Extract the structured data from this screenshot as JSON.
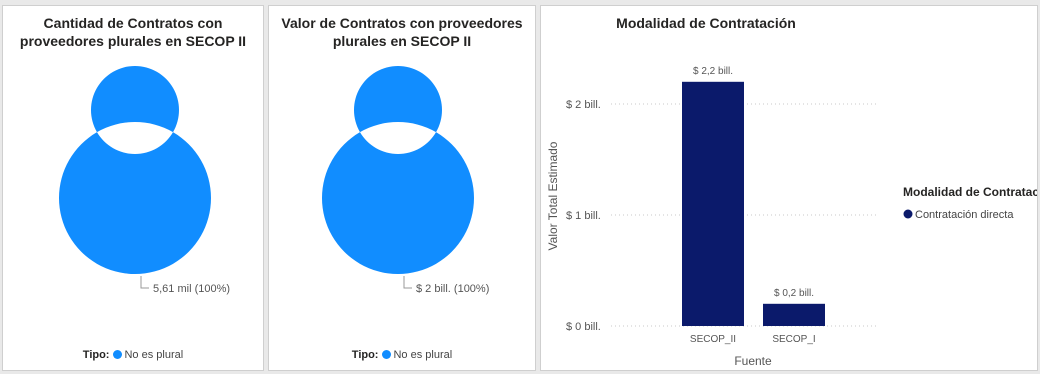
{
  "colors": {
    "donut": "#118dff",
    "bar": "#0b1a6b",
    "grid": "#c8c8c8"
  },
  "chart_data": [
    {
      "type": "pie",
      "title": "Cantidad de Contratos con proveedores plurales en SECOP II",
      "legend_title": "Tipo:",
      "categories": [
        "No es plural"
      ],
      "values": [
        5610
      ],
      "data_labels": [
        "5,61 mil (100%)"
      ],
      "legend_position": "bottom"
    },
    {
      "type": "pie",
      "title": "Valor de Contratos con proveedores plurales en SECOP II",
      "legend_title": "Tipo:",
      "categories": [
        "No es plural"
      ],
      "values": [
        2
      ],
      "data_labels": [
        "$ 2 bill. (100%)"
      ],
      "legend_position": "bottom"
    },
    {
      "type": "bar",
      "title": "Modalidad de Contratación",
      "xlabel": "Fuente",
      "ylabel": "Valor Total Estimado",
      "categories": [
        "SECOP_II",
        "SECOP_I"
      ],
      "values": [
        2.2,
        0.2
      ],
      "data_labels": [
        "$ 2,2 bill.",
        "$ 0,2 bill."
      ],
      "ylim": [
        0,
        2.5
      ],
      "yticks": [
        0,
        1,
        2
      ],
      "ytick_labels": [
        "$ 0 bill.",
        "$ 1 bill.",
        "$ 2 bill."
      ],
      "legend_title": "Modalidad de Contratación",
      "series": [
        {
          "name": "Contratación directa",
          "values": [
            2.2,
            0.2
          ]
        }
      ],
      "legend_position": "right",
      "grid": true
    }
  ]
}
